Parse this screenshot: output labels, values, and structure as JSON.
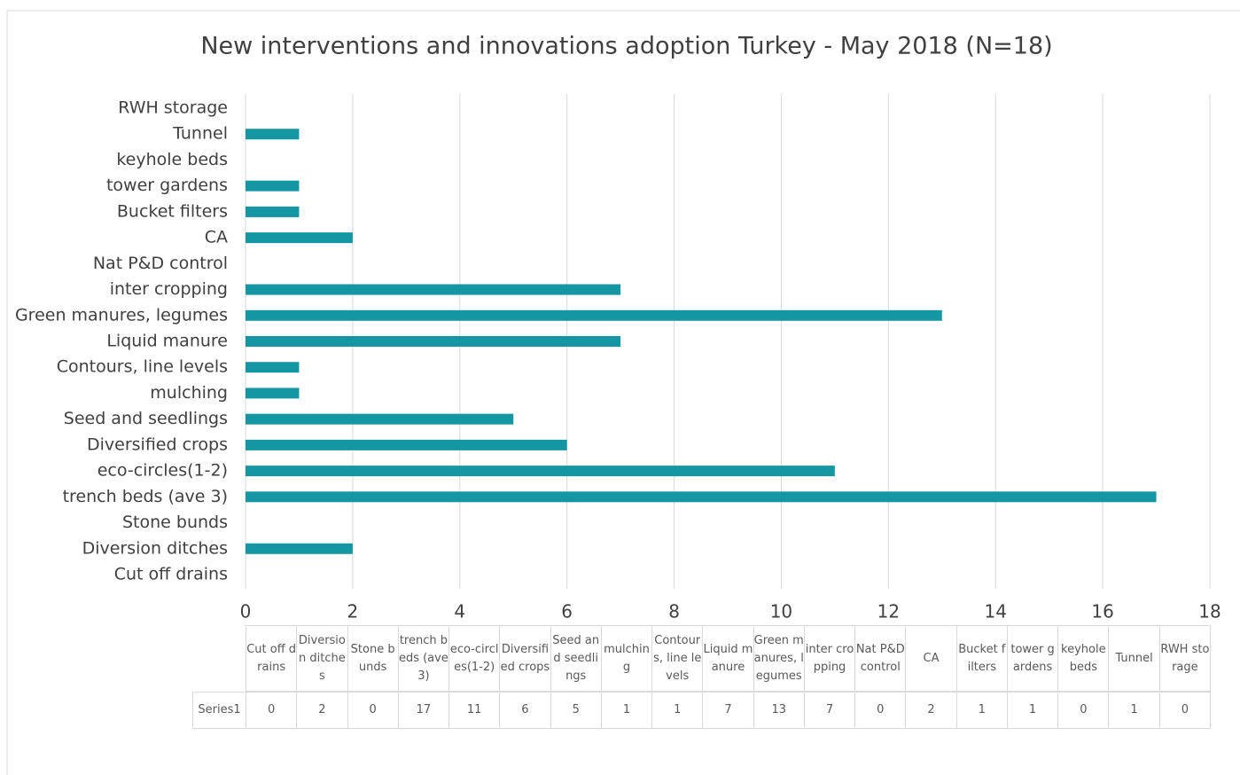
{
  "chart_data": {
    "type": "bar",
    "orientation": "horizontal",
    "title": "New interventions and innovations adoption Turkey - May 2018 (N=18)",
    "categories": [
      "Cut off drains",
      "Diversion ditches",
      "Stone bunds",
      "trench beds (ave 3)",
      "eco-circles(1-2)",
      "Diversified crops",
      "Seed and seedlings",
      "mulching",
      "Contours, line levels",
      "Liquid manure",
      "Green manures, legumes",
      "inter cropping",
      "Nat P&D control",
      "CA",
      "Bucket filters",
      "tower gardens",
      "keyhole beds",
      "Tunnel",
      "RWH storage"
    ],
    "series": [
      {
        "name": "Series1",
        "color": "#1496a3",
        "values": [
          0,
          2,
          0,
          17,
          11,
          6,
          5,
          1,
          1,
          7,
          13,
          7,
          0,
          2,
          1,
          1,
          0,
          1,
          0
        ]
      }
    ],
    "xlim": [
      0,
      18
    ],
    "xticks": [
      0,
      2,
      4,
      6,
      8,
      10,
      12,
      14,
      16,
      18
    ],
    "grid": true,
    "data_table": true
  }
}
